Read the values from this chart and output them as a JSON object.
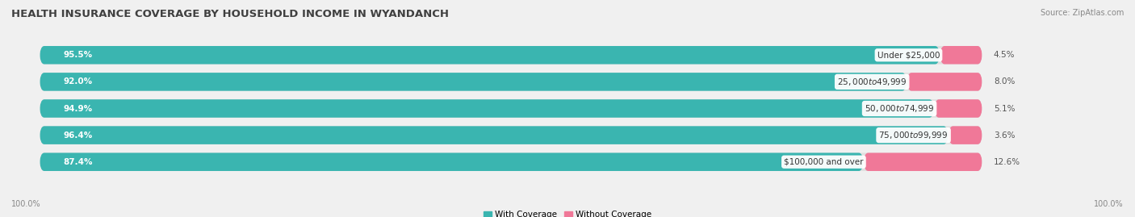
{
  "title": "HEALTH INSURANCE COVERAGE BY HOUSEHOLD INCOME IN WYANDANCH",
  "source": "Source: ZipAtlas.com",
  "categories": [
    "Under $25,000",
    "$25,000 to $49,999",
    "$50,000 to $74,999",
    "$75,000 to $99,999",
    "$100,000 and over"
  ],
  "with_coverage": [
    95.5,
    92.0,
    94.9,
    96.4,
    87.4
  ],
  "without_coverage": [
    4.5,
    8.0,
    5.1,
    3.6,
    12.6
  ],
  "color_with": "#3ab5b0",
  "color_without": "#f07898",
  "bg_color": "#f0f0f0",
  "bar_bg_color": "#e0e0e0",
  "bar_height": 0.68,
  "figsize": [
    14.06,
    2.69
  ],
  "dpi": 100,
  "title_fontsize": 9.5,
  "label_fontsize": 7.5,
  "tick_fontsize": 7,
  "legend_fontsize": 7.5,
  "xlim_left": -3,
  "xlim_right": 115
}
